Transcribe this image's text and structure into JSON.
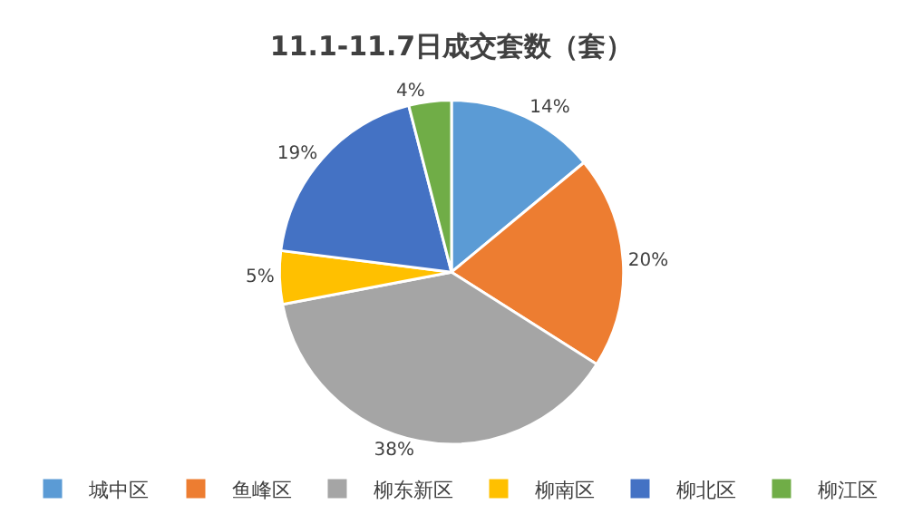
{
  "chart_data": {
    "type": "pie",
    "title": "11.1-11.7日成交套数（套）",
    "categories": [
      "城中区",
      "鱼峰区",
      "柳东新区",
      "柳南区",
      "柳北区",
      "柳江区"
    ],
    "values": [
      14,
      20,
      38,
      5,
      19,
      4
    ],
    "colors": [
      "#5b9bd5",
      "#ed7d31",
      "#a5a5a5",
      "#ffc000",
      "#4472c4",
      "#70ad47"
    ],
    "value_labels": [
      "14%",
      "20%",
      "38%",
      "5%",
      "19%",
      "4%"
    ],
    "legend": "bottom"
  }
}
